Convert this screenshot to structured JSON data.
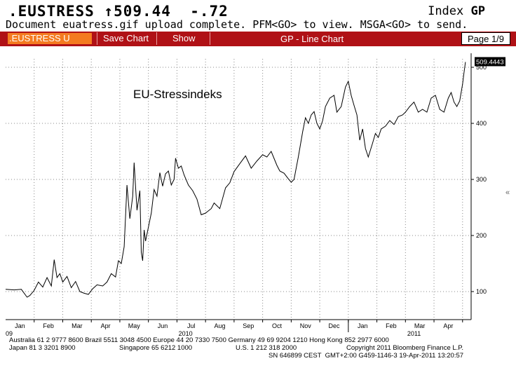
{
  "header": {
    "ticker": ".EUSTRESS ↑509.44  -.72",
    "index_label": "Index",
    "index_function": "GP",
    "message": "Document euatress.gif upload complete. PFM<GO> to view. MSGA<GO> to send."
  },
  "toolbar": {
    "security": ".EUSTRESS U INDE",
    "save_chart": "Save Chart",
    "show": "Show",
    "title": "GP - Line Chart",
    "page": "Page 1/9"
  },
  "chart_data": {
    "type": "line",
    "title": "EU-Stressindeks",
    "last_value_label": "509.4443",
    "y_ticks": [
      "100",
      "200",
      "300",
      "400",
      "500"
    ],
    "y_tick_values": [
      100,
      200,
      300,
      400,
      500
    ],
    "ylim": [
      50,
      515
    ],
    "x_tick_labels": [
      "Jan",
      "Feb",
      "Mar",
      "Apr",
      "May",
      "Jun",
      "Jul",
      "Aug",
      "Sep",
      "Oct",
      "Nov",
      "Dec",
      "Jan",
      "Feb",
      "Mar",
      "Apr"
    ],
    "x_tick_index": [
      1,
      2,
      3,
      4,
      5,
      6,
      7,
      8,
      9,
      10,
      11,
      12,
      13,
      14,
      15,
      16
    ],
    "year_labels": [
      {
        "label": "09",
        "at": 0
      },
      {
        "label": "2010",
        "at": 6.3
      },
      {
        "label": "2011",
        "at": 14.3
      }
    ],
    "xlim": [
      0,
      16.3
    ],
    "grid": true,
    "series": [
      {
        "x": [
          0,
          0.3,
          0.55,
          0.75,
          0.85,
          1.0,
          1.15,
          1.3,
          1.45,
          1.6,
          1.7,
          1.8,
          1.9,
          2.0,
          2.15,
          2.3,
          2.45,
          2.6,
          2.75,
          2.9,
          3.05,
          3.2,
          3.4,
          3.55,
          3.7,
          3.85,
          3.95,
          4.05,
          4.15,
          4.25,
          4.35,
          4.45,
          4.5,
          4.6,
          4.7,
          4.75,
          4.8,
          4.85,
          4.9,
          5.0,
          5.1,
          5.2,
          5.3,
          5.4,
          5.5,
          5.6,
          5.7,
          5.8,
          5.9,
          5.95,
          6.05,
          6.15,
          6.25,
          6.4,
          6.55,
          6.7,
          6.85,
          7.0,
          7.2,
          7.3,
          7.5,
          7.7,
          7.85,
          8.0,
          8.2,
          8.4,
          8.6,
          8.8,
          9.0,
          9.15,
          9.3,
          9.5,
          9.6,
          9.75,
          9.9,
          10.0,
          10.1,
          10.25,
          10.4,
          10.5,
          10.6,
          10.7,
          10.8,
          10.9,
          11.0,
          11.1,
          11.2,
          11.35,
          11.5,
          11.6,
          11.75,
          11.9,
          12.0,
          12.1,
          12.2,
          12.3,
          12.4,
          12.5,
          12.6,
          12.7,
          12.85,
          12.95,
          13.05,
          13.15,
          13.3,
          13.45,
          13.6,
          13.75,
          13.9,
          14.0,
          14.15,
          14.3,
          14.45,
          14.6,
          14.75,
          14.9,
          15.05,
          15.2,
          15.35,
          15.5,
          15.6,
          15.7,
          15.8,
          15.9,
          16.0,
          16.05,
          16.1
        ],
        "y": [
          104,
          103,
          104,
          90,
          93,
          102,
          117,
          108,
          125,
          110,
          157,
          125,
          132,
          117,
          127,
          107,
          118,
          100,
          97,
          95,
          105,
          112,
          110,
          117,
          132,
          126,
          155,
          150,
          180,
          290,
          230,
          270,
          330,
          245,
          280,
          170,
          155,
          210,
          190,
          215,
          240,
          282,
          270,
          312,
          288,
          310,
          315,
          290,
          300,
          338,
          320,
          324,
          308,
          290,
          280,
          265,
          237,
          240,
          248,
          258,
          248,
          285,
          294,
          314,
          328,
          342,
          320,
          333,
          344,
          340,
          350,
          325,
          315,
          311,
          301,
          295,
          300,
          340,
          385,
          410,
          400,
          415,
          421,
          400,
          390,
          405,
          430,
          445,
          450,
          420,
          430,
          465,
          475,
          450,
          432,
          415,
          370,
          390,
          355,
          340,
          365,
          382,
          375,
          390,
          395,
          405,
          398,
          412,
          415,
          420,
          430,
          438,
          420,
          425,
          420,
          445,
          450,
          425,
          420,
          445,
          455,
          438,
          430,
          440,
          470,
          490,
          509.4443
        ]
      }
    ]
  },
  "footer": {
    "line1": "Australia 61 2 9777 8600 Brazil 5511 3048 4500 Europe 44 20 7330 7500 Germany 49 69 9204 1210 Hong Kong 852 2977 6000",
    "japan": "Japan 81 3 3201 8900",
    "singapore": "Singapore 65 6212 1000",
    "us": "U.S. 1 212 318 2000",
    "copyright": "Copyright 2011 Bloomberg Finance L.P.",
    "line3": "SN 646899 CEST  GMT+2:00 G459-1146-3 19-Apr-2011 13:20:57"
  }
}
